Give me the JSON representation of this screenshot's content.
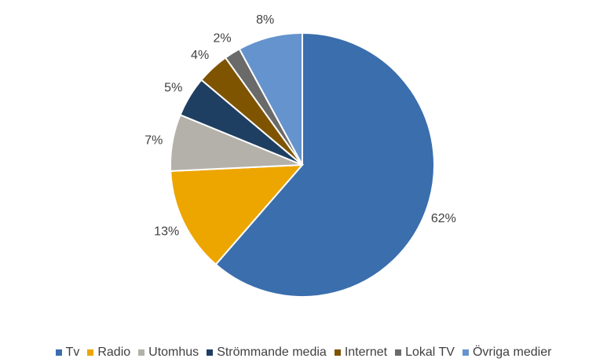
{
  "chart_data": {
    "type": "pie",
    "title": "",
    "start_angle_deg": 0,
    "direction": "clockwise",
    "legend_position": "bottom",
    "slices": [
      {
        "name": "Tv",
        "value": 62,
        "label": "62%",
        "color": "#3A6EAD"
      },
      {
        "name": "Radio",
        "value": 13,
        "label": "13%",
        "color": "#EDA500"
      },
      {
        "name": "Utomhus",
        "value": 7,
        "label": "7%",
        "color": "#B4B1AA"
      },
      {
        "name": "Strömmande media",
        "value": 5,
        "label": "5%",
        "color": "#1F3F62"
      },
      {
        "name": "Internet",
        "value": 4,
        "label": "4%",
        "color": "#7F5400"
      },
      {
        "name": "Lokal TV",
        "value": 2,
        "label": "2%",
        "color": "#6A6A6A"
      },
      {
        "name": "Övriga medier",
        "value": 8,
        "label": "8%",
        "color": "#6593CD"
      }
    ]
  }
}
